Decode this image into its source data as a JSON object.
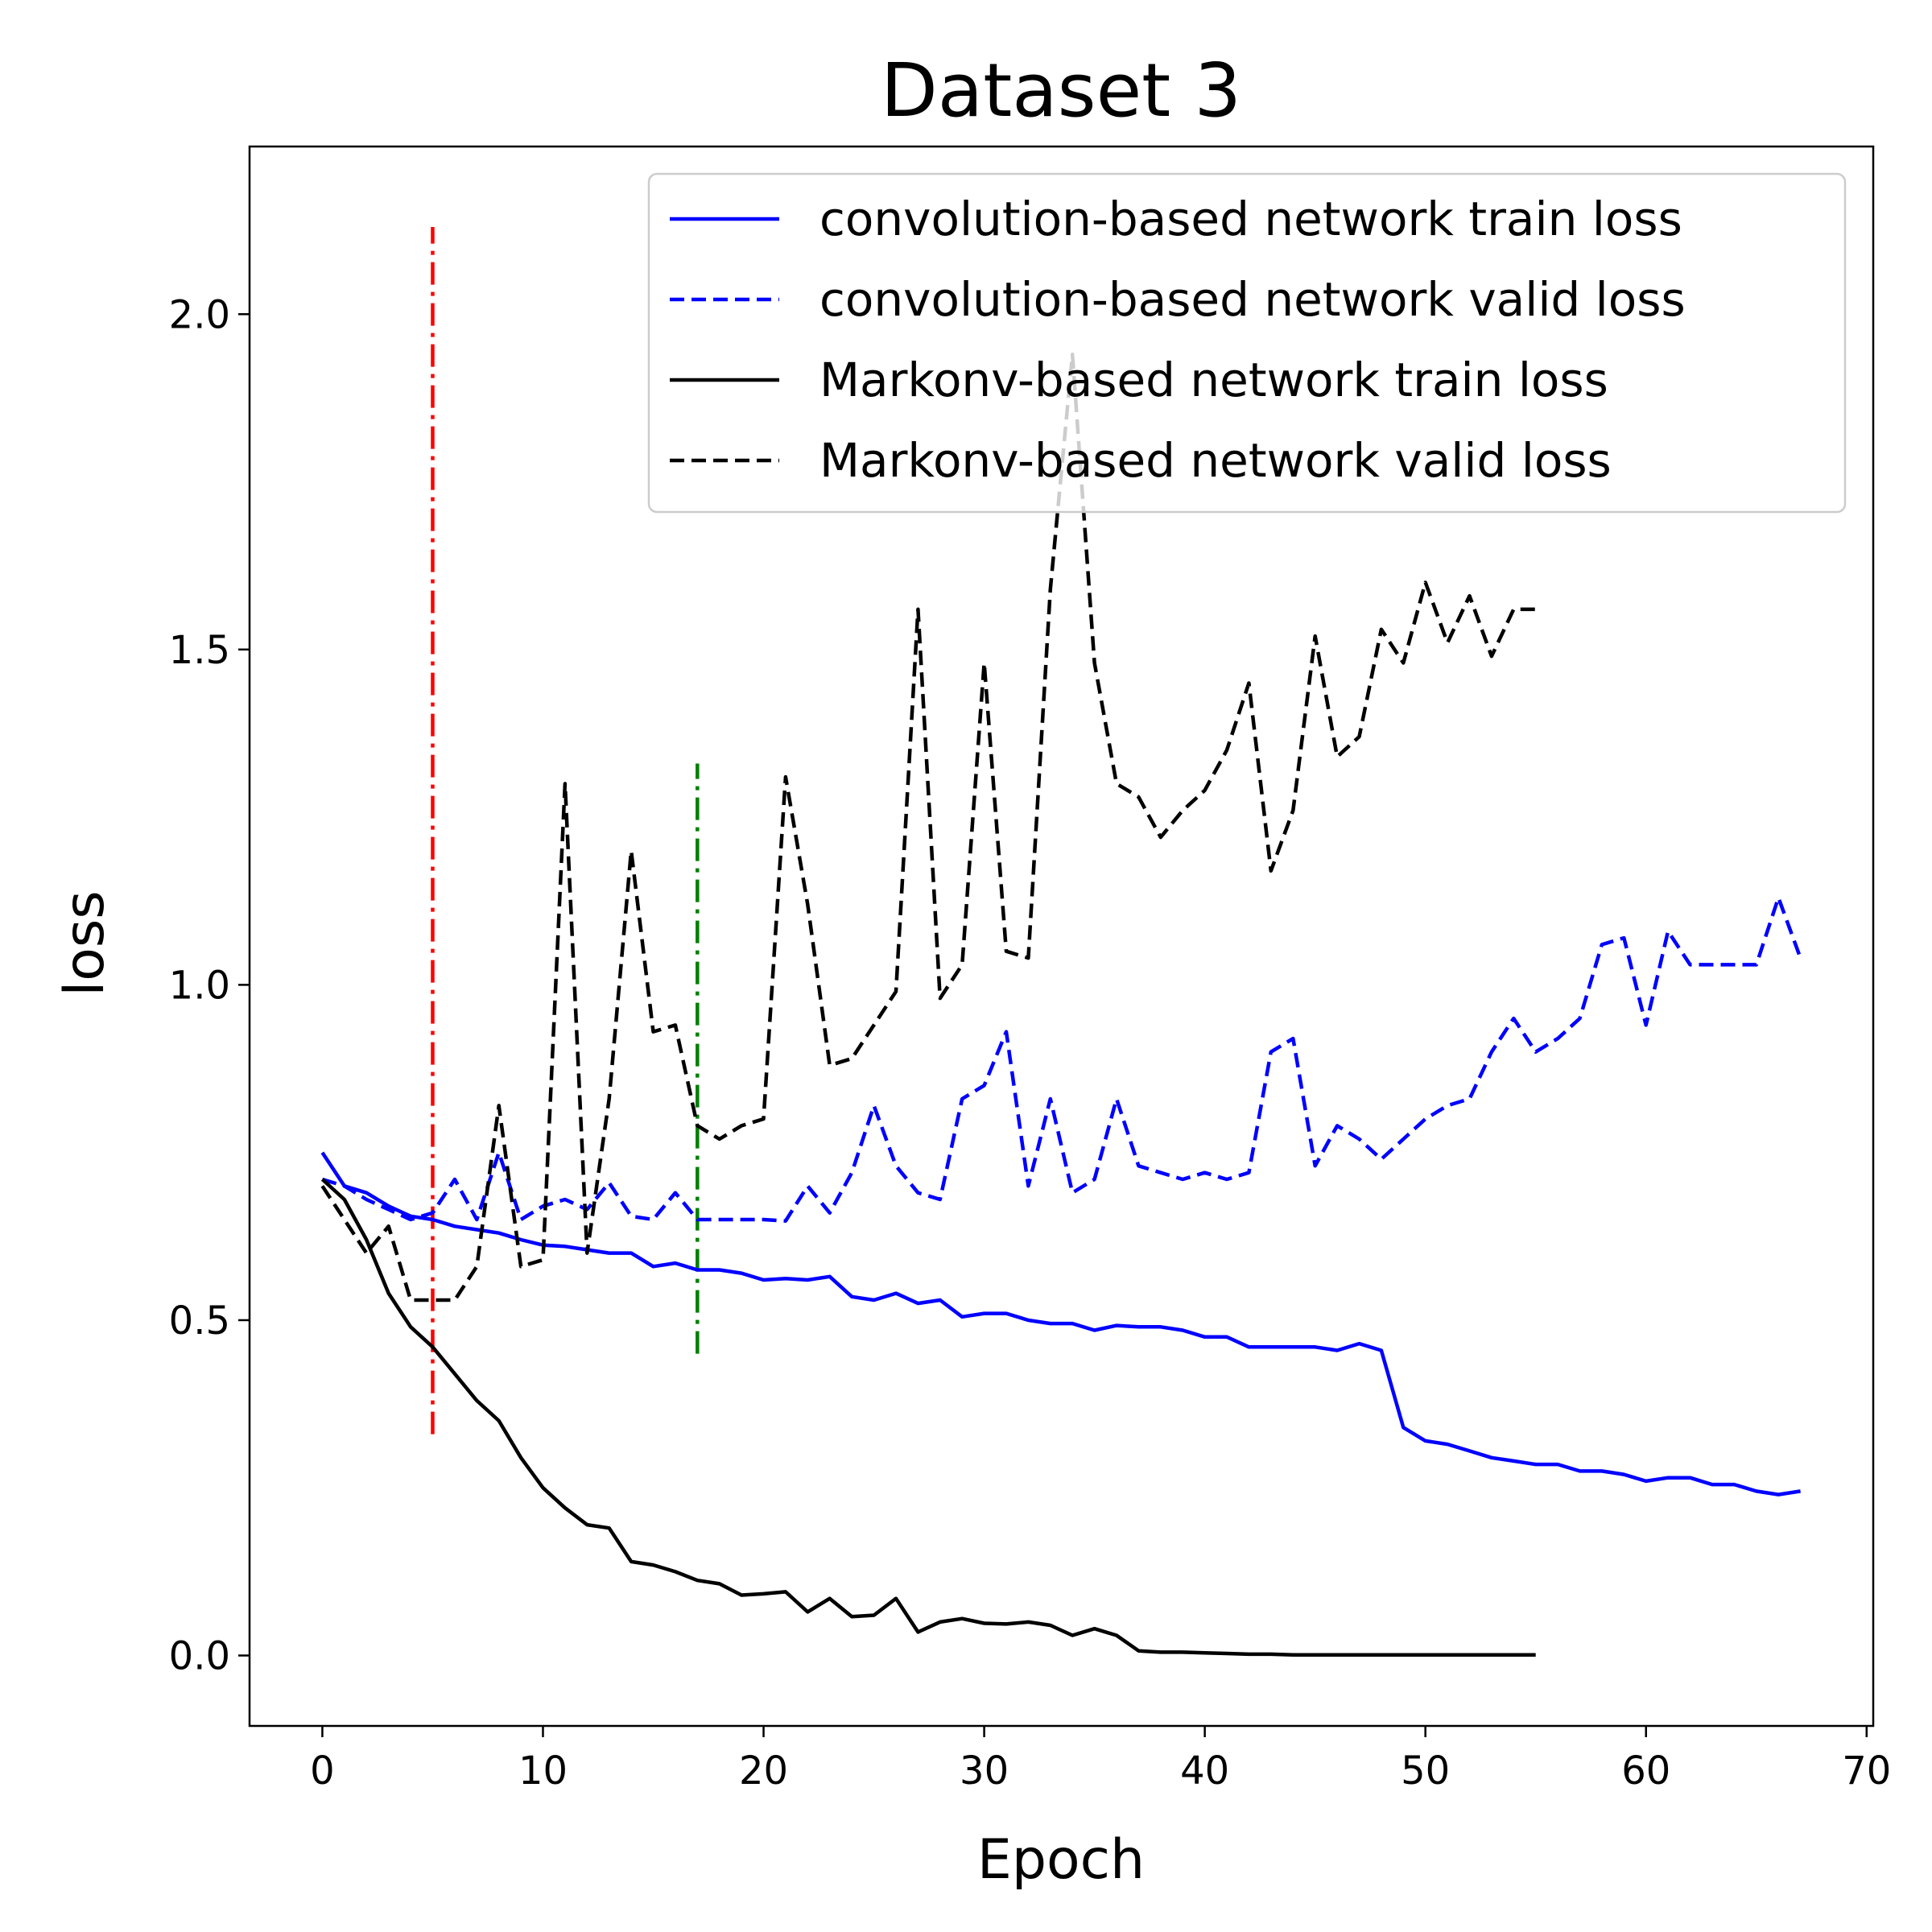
{
  "chart_data": {
    "type": "line",
    "title": "Dataset 3",
    "xlabel": "Epoch",
    "ylabel": "loss",
    "xlim": [
      -3.3,
      70.3
    ],
    "ylim": [
      -0.105,
      2.25
    ],
    "xticks": [
      0,
      10,
      20,
      30,
      40,
      50,
      60,
      70
    ],
    "yticks": [
      0.0,
      0.5,
      1.0,
      1.5,
      2.0
    ],
    "xtick_labels": [
      "0",
      "10",
      "20",
      "30",
      "40",
      "50",
      "60",
      "70"
    ],
    "ytick_labels": [
      "0.0",
      "0.5",
      "1.0",
      "1.5",
      "2.0"
    ],
    "grid": false,
    "legend_position": "top-right",
    "series": [
      {
        "name": "convolution-based network train loss",
        "color": "#0000ff",
        "linestyle": "solid",
        "x": [
          0,
          1,
          2,
          3,
          4,
          5,
          6,
          7,
          8,
          9,
          10,
          11,
          12,
          13,
          14,
          15,
          16,
          17,
          18,
          19,
          20,
          21,
          22,
          23,
          24,
          25,
          26,
          27,
          28,
          29,
          30,
          31,
          32,
          33,
          34,
          35,
          36,
          37,
          38,
          39,
          40,
          41,
          42,
          43,
          44,
          45,
          46,
          47,
          48,
          49,
          50,
          51,
          52,
          53,
          54,
          55,
          56,
          57,
          58,
          59,
          60,
          61,
          62,
          63,
          64,
          65,
          66,
          67
        ],
        "y": [
          0.75,
          0.7,
          0.69,
          0.67,
          0.655,
          0.65,
          0.64,
          0.635,
          0.63,
          0.62,
          0.612,
          0.61,
          0.605,
          0.6,
          0.6,
          0.58,
          0.585,
          0.575,
          0.575,
          0.57,
          0.56,
          0.562,
          0.56,
          0.565,
          0.535,
          0.53,
          0.54,
          0.525,
          0.53,
          0.505,
          0.51,
          0.51,
          0.5,
          0.495,
          0.495,
          0.485,
          0.492,
          0.49,
          0.49,
          0.485,
          0.475,
          0.475,
          0.46,
          0.46,
          0.46,
          0.46,
          0.455,
          0.465,
          0.455,
          0.34,
          0.32,
          0.315,
          0.305,
          0.295,
          0.29,
          0.285,
          0.285,
          0.275,
          0.275,
          0.27,
          0.26,
          0.265,
          0.265,
          0.255,
          0.255,
          0.245,
          0.24,
          0.245
        ]
      },
      {
        "name": "convolution-based network valid loss",
        "color": "#0000ff",
        "linestyle": "dashed",
        "x": [
          0,
          1,
          2,
          3,
          4,
          5,
          6,
          7,
          8,
          9,
          10,
          11,
          12,
          13,
          14,
          15,
          16,
          17,
          18,
          19,
          20,
          21,
          22,
          23,
          24,
          25,
          26,
          27,
          28,
          29,
          30,
          31,
          32,
          33,
          34,
          35,
          36,
          37,
          38,
          39,
          40,
          41,
          42,
          43,
          44,
          45,
          46,
          47,
          48,
          49,
          50,
          51,
          52,
          53,
          54,
          55,
          56,
          57,
          58,
          59,
          60,
          61,
          62,
          63,
          64,
          65,
          66,
          67
        ],
        "y": [
          0.71,
          0.7,
          0.68,
          0.665,
          0.65,
          0.66,
          0.71,
          0.65,
          0.75,
          0.65,
          0.67,
          0.68,
          0.665,
          0.705,
          0.655,
          0.65,
          0.69,
          0.65,
          0.65,
          0.65,
          0.65,
          0.648,
          0.7,
          0.66,
          0.72,
          0.82,
          0.73,
          0.69,
          0.68,
          0.83,
          0.85,
          0.93,
          0.7,
          0.83,
          0.69,
          0.71,
          0.83,
          0.73,
          0.72,
          0.71,
          0.72,
          0.71,
          0.72,
          0.9,
          0.92,
          0.73,
          0.79,
          0.77,
          0.74,
          0.77,
          0.8,
          0.82,
          0.83,
          0.9,
          0.95,
          0.9,
          0.92,
          0.95,
          1.06,
          1.07,
          0.94,
          1.08,
          1.03,
          1.03,
          1.03,
          1.03,
          1.13,
          1.04
        ]
      },
      {
        "name": "Markonv-based network train loss",
        "color": "#000000",
        "linestyle": "solid",
        "x": [
          0,
          1,
          2,
          3,
          4,
          5,
          6,
          7,
          8,
          9,
          10,
          11,
          12,
          13,
          14,
          15,
          16,
          17,
          18,
          19,
          20,
          21,
          22,
          23,
          24,
          25,
          26,
          27,
          28,
          29,
          30,
          31,
          32,
          33,
          34,
          35,
          36,
          37,
          38,
          39,
          40,
          41,
          42,
          43,
          44,
          45,
          46,
          47,
          48,
          49,
          50,
          51,
          52,
          53,
          54,
          55
        ],
        "y": [
          0.71,
          0.68,
          0.62,
          0.54,
          0.49,
          0.46,
          0.42,
          0.38,
          0.35,
          0.295,
          0.25,
          0.22,
          0.195,
          0.19,
          0.14,
          0.135,
          0.125,
          0.112,
          0.107,
          0.09,
          0.092,
          0.095,
          0.065,
          0.085,
          0.058,
          0.06,
          0.085,
          0.035,
          0.05,
          0.055,
          0.048,
          0.047,
          0.05,
          0.045,
          0.03,
          0.04,
          0.03,
          0.007,
          0.005,
          0.005,
          0.004,
          0.003,
          0.002,
          0.002,
          0.001,
          0.001,
          0.001,
          0.001,
          0.001,
          0.001,
          0.001,
          0.001,
          0.001,
          0.001,
          0.001,
          0.001
        ]
      },
      {
        "name": "Markonv-based network valid loss",
        "color": "#000000",
        "linestyle": "dashed",
        "x": [
          0,
          1,
          2,
          3,
          4,
          5,
          6,
          7,
          8,
          9,
          10,
          11,
          12,
          13,
          14,
          15,
          16,
          17,
          18,
          19,
          20,
          21,
          22,
          23,
          24,
          25,
          26,
          27,
          28,
          29,
          30,
          31,
          32,
          33,
          34,
          35,
          36,
          37,
          38,
          39,
          40,
          41,
          42,
          43,
          44,
          45,
          46,
          47,
          48,
          49,
          50,
          51,
          52,
          53,
          54,
          55
        ],
        "y": [
          0.7,
          0.65,
          0.6,
          0.64,
          0.53,
          0.53,
          0.53,
          0.58,
          0.82,
          0.58,
          0.59,
          1.3,
          0.6,
          0.83,
          1.2,
          0.93,
          0.94,
          0.79,
          0.77,
          0.79,
          0.8,
          1.31,
          1.12,
          0.88,
          0.89,
          0.94,
          0.99,
          1.56,
          0.98,
          1.03,
          1.48,
          1.05,
          1.04,
          1.59,
          1.94,
          1.48,
          1.3,
          1.28,
          1.22,
          1.26,
          1.29,
          1.35,
          1.45,
          1.17,
          1.26,
          1.52,
          1.34,
          1.37,
          1.53,
          1.48,
          1.6,
          1.51,
          1.58,
          1.49,
          1.56,
          1.56
        ]
      }
    ],
    "vlines": [
      {
        "x": 5,
        "ymin": 0.33,
        "ymax": 2.13,
        "color": "#ff0000",
        "linestyle": "dashdot"
      },
      {
        "x": 17,
        "ymin": 0.45,
        "ymax": 1.33,
        "color": "#008000",
        "linestyle": "dashdot"
      }
    ]
  }
}
